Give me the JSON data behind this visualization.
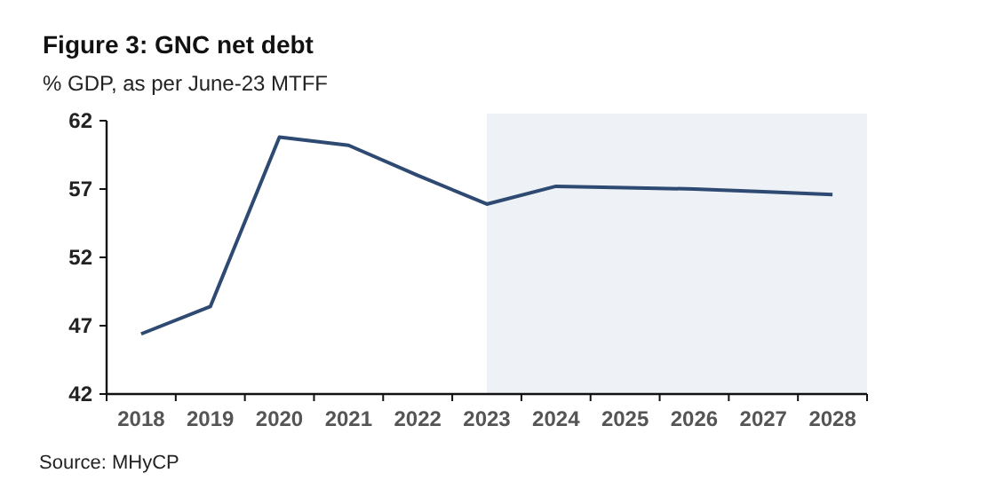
{
  "chart_data": {
    "type": "line",
    "title": "Figure 3: GNC net debt",
    "subtitle": "% GDP, as per June-23 MTFF",
    "categories": [
      "2018",
      "2019",
      "2020",
      "2021",
      "2022",
      "2023",
      "2024",
      "2025",
      "2026",
      "2027",
      "2028"
    ],
    "series": [
      {
        "color": "#2e4a72",
        "values": [
          46.4,
          48.4,
          60.8,
          60.2,
          58.0,
          55.9,
          57.2,
          57.1,
          57.0,
          56.8,
          56.6
        ]
      }
    ],
    "ylim": [
      42,
      62
    ],
    "yticks": [
      42,
      47,
      52,
      57,
      62
    ],
    "marker": "none",
    "line_style": "solid",
    "bands": [
      {
        "axis": "x",
        "from": "2023",
        "to": "2028",
        "color": "#eef1f5"
      }
    ],
    "annotations": [
      "Source: MHyCP"
    ]
  }
}
